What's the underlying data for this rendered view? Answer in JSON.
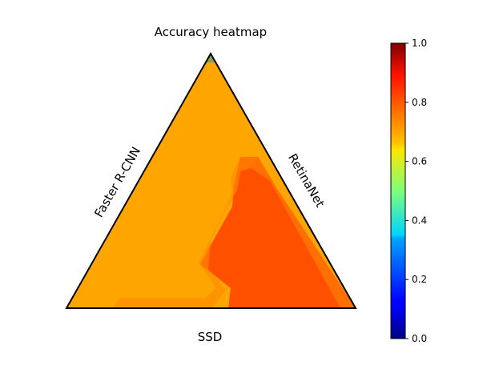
{
  "chart_data": {
    "type": "heatmap",
    "subtype": "ternary",
    "title": "Accuracy heatmap",
    "axis_labels": {
      "left": "Faster R-CNN",
      "right": "RetinaNet",
      "bottom": "SSD"
    },
    "colormap": "jet",
    "colorbar": {
      "range": [
        0,
        1
      ],
      "ticks": [
        "0.0",
        "0.2",
        "0.4",
        "0.6",
        "0.8",
        "1.0"
      ]
    },
    "grid": false,
    "regions": [
      {
        "name": "orange region",
        "value": 0.74,
        "color": "#ffa500"
      },
      {
        "name": "red-orange region (lower right)",
        "value": 0.84,
        "color": "#ff5000"
      },
      {
        "name": "apex cell",
        "value": 0.65,
        "color": "#8c9a5a"
      }
    ]
  }
}
